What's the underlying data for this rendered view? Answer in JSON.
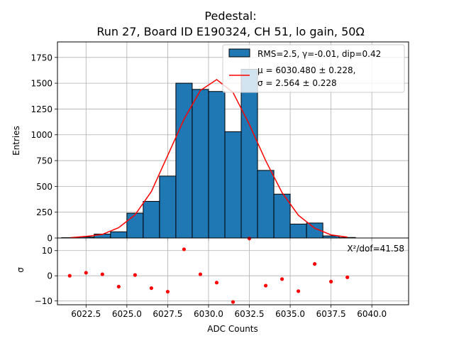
{
  "chart_data": [
    {
      "type": "bar",
      "panel": "main",
      "title_line1": "Pedestal:",
      "title_line2": "Run 27, Board ID E190324, CH 51, lo gain, 50Ω",
      "xlabel": "",
      "ylabel": "Entries",
      "xlim": [
        6020.75,
        6042.25
      ],
      "ylim": [
        0,
        1900
      ],
      "y_ticks": [
        0,
        250,
        500,
        750,
        1000,
        1250,
        1500,
        1750
      ],
      "grid": true,
      "legend_position": "top-right",
      "histogram": {
        "name": "RMS=2.5, γ=-0.01, dip=0.42",
        "color": "#1f77b4",
        "edge_color": "#000000",
        "bin_width": 1,
        "bin_lefts": [
          6021,
          6022,
          6023,
          6024,
          6025,
          6026,
          6027,
          6028,
          6029,
          6030,
          6031,
          6032,
          6033,
          6034,
          6035,
          6036,
          6037,
          6038
        ],
        "counts": [
          3,
          10,
          38,
          60,
          240,
          355,
          600,
          1500,
          1440,
          1420,
          1030,
          1635,
          655,
          425,
          135,
          145,
          20,
          5
        ]
      },
      "fit": {
        "name_line1": "μ = 6030.480 ± 0.228,",
        "name_line2": "σ = 2.564 ± 0.228",
        "color": "#ff0000",
        "x": [
          6021.5,
          6022.5,
          6023.5,
          6024.5,
          6025.5,
          6026.5,
          6027.5,
          6028.5,
          6029.5,
          6030.5,
          6031.5,
          6032.5,
          6033.5,
          6034.5,
          6035.5,
          6036.5,
          6037.5,
          6038.5
        ],
        "y": [
          3,
          15,
          35,
          100,
          225,
          450,
          800,
          1150,
          1430,
          1535,
          1410,
          1100,
          750,
          440,
          220,
          95,
          30,
          8
        ]
      }
    },
    {
      "type": "scatter",
      "panel": "residuals",
      "xlabel": "ADC Counts",
      "ylabel": "σ",
      "xlim": [
        6020.75,
        6042.25
      ],
      "ylim": [
        -11.5,
        15
      ],
      "x_ticks": [
        6022.5,
        6025.0,
        6027.5,
        6030.0,
        6032.5,
        6035.0,
        6037.5,
        6040.0
      ],
      "x_tick_labels": [
        "6022.5",
        "6025.0",
        "6027.5",
        "6030.0",
        "6032.5",
        "6035.0",
        "6037.5",
        "6040.0"
      ],
      "y_ticks": [
        -10,
        0,
        10
      ],
      "grid": true,
      "annotation": "X²/dof=41.58",
      "color": "#ff0000",
      "x": [
        6021.5,
        6022.5,
        6023.5,
        6024.5,
        6025.5,
        6026.5,
        6027.5,
        6028.5,
        6029.5,
        6030.5,
        6031.5,
        6032.5,
        6033.5,
        6034.5,
        6035.5,
        6036.5,
        6037.5,
        6038.5
      ],
      "y": [
        0,
        1.2,
        0.6,
        -4.3,
        0.3,
        -4.9,
        -6.3,
        10.5,
        0.6,
        -2.7,
        -10.4,
        14.8,
        -3.9,
        -1.3,
        -6.1,
        4.7,
        -2.3,
        -0.6
      ]
    }
  ]
}
